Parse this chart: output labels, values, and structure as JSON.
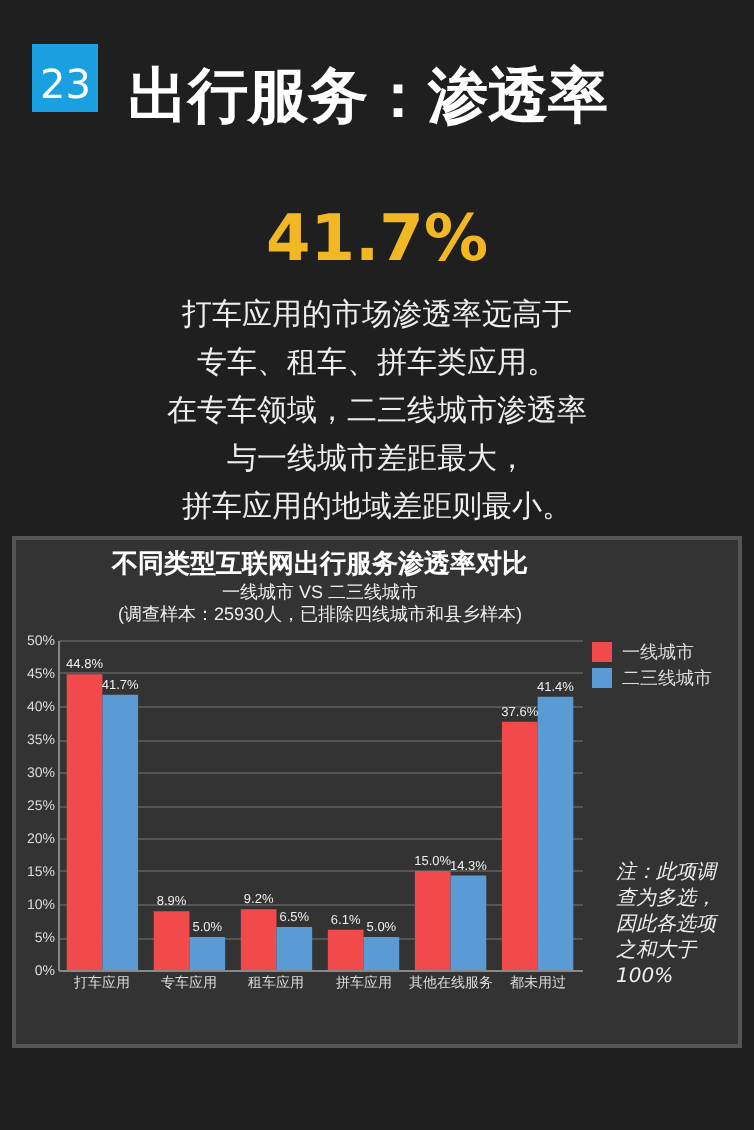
{
  "chart_data": {
    "type": "bar",
    "title": "不同类型互联网出行服务渗透率对比",
    "subtitle": "一线城市 VS 二三线城市",
    "annotations": [
      "23",
      "出行服务：渗透率",
      "41.7%",
      "打车应用的市场渗透率远高于",
      "专车、租车、拼车类应用。",
      "在专车领域，二三线城市渗透率",
      "与一线城市差距最大，",
      "拼车应用的地域差距则最小。",
      "(调查样本：25930人，已排除四线城市和县乡样本)",
      "注：此项调查为多选，因此各选项之和大于100%"
    ],
    "categories": [
      "打车应用",
      "专车应用",
      "租车应用",
      "拼车应用",
      "其他在线服务",
      "都未用过"
    ],
    "series": [
      {
        "name": "一线城市",
        "color": "#f24a4a",
        "values": [
          44.8,
          8.9,
          9.2,
          6.1,
          15.0,
          37.6
        ],
        "value_labels": [
          "44.8%",
          "8.9%",
          "9.2%",
          "6.1%",
          "15.0%",
          "37.6%"
        ]
      },
      {
        "name": "二三线城市",
        "color": "#5b9bd5",
        "values": [
          41.7,
          5.0,
          6.5,
          5.0,
          14.3,
          41.4
        ],
        "value_labels": [
          "41.7%",
          "5.0%",
          "6.5%",
          "5.0%",
          "14.3%",
          "41.4%"
        ]
      }
    ],
    "ylim": [
      0,
      50
    ],
    "yticks": [
      {
        "value": 0,
        "label": "0%"
      },
      {
        "value": 5,
        "label": "5%"
      },
      {
        "value": 10,
        "label": "10%"
      },
      {
        "value": 15,
        "label": "15%"
      },
      {
        "value": 20,
        "label": "20%"
      },
      {
        "value": 25,
        "label": "25%"
      },
      {
        "value": 30,
        "label": "30%"
      },
      {
        "value": 35,
        "label": "35%"
      },
      {
        "value": 40,
        "label": "40%"
      },
      {
        "value": 45,
        "label": "45%"
      },
      {
        "value": 50,
        "label": "50%"
      }
    ],
    "grid": "y",
    "legend": "right"
  }
}
